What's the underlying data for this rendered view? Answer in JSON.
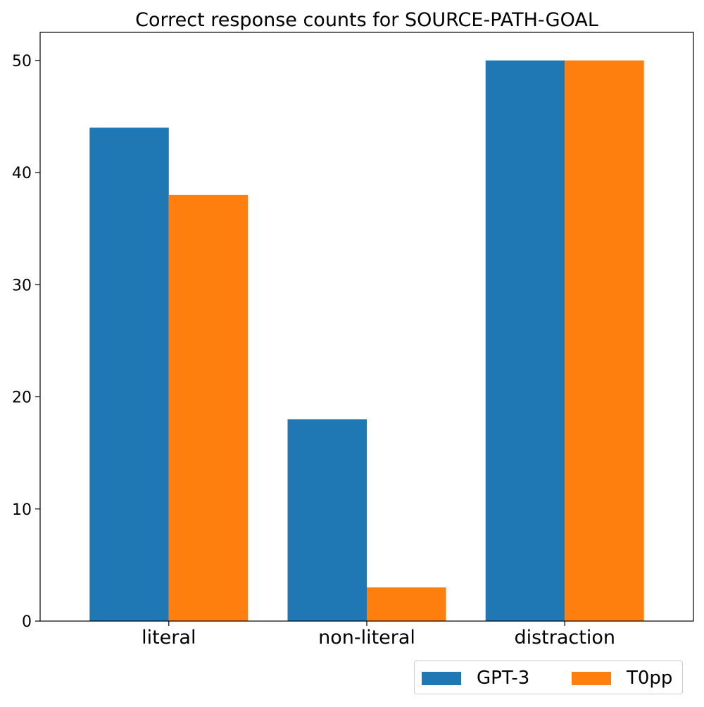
{
  "chart_data": {
    "type": "bar",
    "title": "Correct response counts for SOURCE-PATH-GOAL",
    "xlabel": "",
    "ylabel": "",
    "categories": [
      "literal",
      "non-literal",
      "distraction"
    ],
    "series": [
      {
        "name": "GPT-3",
        "values": [
          44,
          18,
          50
        ],
        "color": "#1f77b4"
      },
      {
        "name": "T0pp",
        "values": [
          38,
          3,
          50
        ],
        "color": "#ff7f0e"
      }
    ],
    "ylim": [
      0,
      52.5
    ],
    "yticks": [
      0,
      10,
      20,
      30,
      40,
      50
    ],
    "grid": false,
    "legend_position": "bottom-right"
  }
}
